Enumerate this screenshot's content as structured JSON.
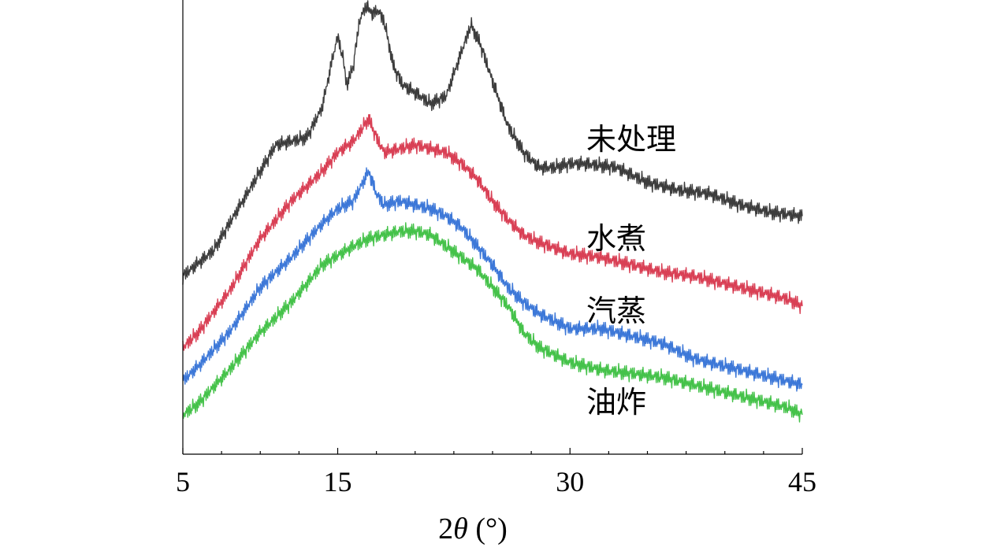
{
  "chart_data": {
    "type": "line",
    "xlabel_parts": {
      "prefix": "2",
      "symbol": "θ",
      "suffix": " (°)"
    },
    "ylabel": "",
    "xlim": [
      5,
      45
    ],
    "xticks": [
      5,
      15,
      30,
      45
    ],
    "x_minor_ticks": [
      7.5,
      10,
      12.5,
      17.5,
      20,
      22.5,
      25,
      27.5,
      32.5,
      35,
      37.5,
      40,
      42.5
    ],
    "y_ticks_shown": false,
    "grid": false,
    "legend": "inline labels to the right of each curve",
    "series": [
      {
        "name": "未处理",
        "color": "#3d3d3d",
        "points": [
          [
            5,
            30
          ],
          [
            7,
            37
          ],
          [
            9,
            51
          ],
          [
            10,
            58
          ],
          [
            11,
            65
          ],
          [
            12,
            66
          ],
          [
            13,
            67
          ],
          [
            14,
            75
          ],
          [
            14.6,
            87
          ],
          [
            15,
            94
          ],
          [
            15.3,
            89
          ],
          [
            15.6,
            81
          ],
          [
            16,
            86
          ],
          [
            16.4,
            98
          ],
          [
            16.8,
            102
          ],
          [
            17.3,
            100
          ],
          [
            17.6,
            101
          ],
          [
            18,
            98
          ],
          [
            18.6,
            86
          ],
          [
            19.2,
            81
          ],
          [
            20,
            79
          ],
          [
            21,
            76
          ],
          [
            22,
            78
          ],
          [
            23,
            90
          ],
          [
            23.6,
            97
          ],
          [
            24.2,
            92
          ],
          [
            25,
            82
          ],
          [
            26,
            70
          ],
          [
            27,
            63
          ],
          [
            28,
            59
          ],
          [
            29,
            59
          ],
          [
            30,
            60
          ],
          [
            31,
            60
          ],
          [
            33,
            59
          ],
          [
            35,
            55
          ],
          [
            37,
            53
          ],
          [
            39,
            52
          ],
          [
            41,
            49
          ],
          [
            43,
            47
          ],
          [
            45,
            46
          ]
        ]
      },
      {
        "name": "水煮",
        "color": "#d94055",
        "points": [
          [
            5,
            11
          ],
          [
            6,
            15
          ],
          [
            8,
            26
          ],
          [
            10,
            40
          ],
          [
            12,
            50
          ],
          [
            14,
            58
          ],
          [
            15,
            63
          ],
          [
            16,
            66
          ],
          [
            17,
            72
          ],
          [
            17.5,
            67
          ],
          [
            18,
            63
          ],
          [
            19,
            64
          ],
          [
            20,
            65
          ],
          [
            21,
            64
          ],
          [
            22,
            63
          ],
          [
            23,
            60
          ],
          [
            24,
            56
          ],
          [
            25,
            50
          ],
          [
            26,
            45
          ],
          [
            27,
            41
          ],
          [
            28,
            39
          ],
          [
            30,
            36
          ],
          [
            32,
            35
          ],
          [
            34,
            33
          ],
          [
            36,
            31
          ],
          [
            38,
            30
          ],
          [
            40,
            28
          ],
          [
            42,
            26
          ],
          [
            44,
            24
          ],
          [
            45,
            22
          ]
        ]
      },
      {
        "name": "汽蒸",
        "color": "#3d78d8",
        "points": [
          [
            5,
            2
          ],
          [
            6,
            6
          ],
          [
            8,
            15
          ],
          [
            10,
            27
          ],
          [
            12,
            35
          ],
          [
            14,
            44
          ],
          [
            15,
            48
          ],
          [
            16,
            50
          ],
          [
            16.5,
            54
          ],
          [
            17,
            58
          ],
          [
            17.5,
            52
          ],
          [
            18,
            49
          ],
          [
            19,
            50
          ],
          [
            20,
            49
          ],
          [
            21,
            48
          ],
          [
            22,
            46
          ],
          [
            23,
            43
          ],
          [
            24,
            38
          ],
          [
            25,
            33
          ],
          [
            26,
            27
          ],
          [
            27,
            23
          ],
          [
            28,
            20
          ],
          [
            30,
            16
          ],
          [
            32,
            16
          ],
          [
            34,
            14
          ],
          [
            36,
            12
          ],
          [
            38,
            8
          ],
          [
            40,
            6
          ],
          [
            42,
            4
          ],
          [
            44,
            2
          ],
          [
            45,
            1
          ]
        ]
      },
      {
        "name": "油炸",
        "color": "#45c24a",
        "points": [
          [
            5,
            -7
          ],
          [
            6,
            -4
          ],
          [
            8,
            5
          ],
          [
            10,
            15
          ],
          [
            12,
            23
          ],
          [
            14,
            33
          ],
          [
            16,
            38
          ],
          [
            17,
            40
          ],
          [
            18,
            41
          ],
          [
            19,
            42
          ],
          [
            20,
            42
          ],
          [
            21,
            41
          ],
          [
            22,
            38
          ],
          [
            24,
            32
          ],
          [
            26,
            22
          ],
          [
            27,
            15
          ],
          [
            28,
            11
          ],
          [
            30,
            7
          ],
          [
            32,
            5
          ],
          [
            34,
            4
          ],
          [
            36,
            3
          ],
          [
            38,
            1
          ],
          [
            40,
            -1
          ],
          [
            42,
            -3
          ],
          [
            44,
            -5
          ],
          [
            45,
            -7
          ]
        ]
      }
    ]
  }
}
